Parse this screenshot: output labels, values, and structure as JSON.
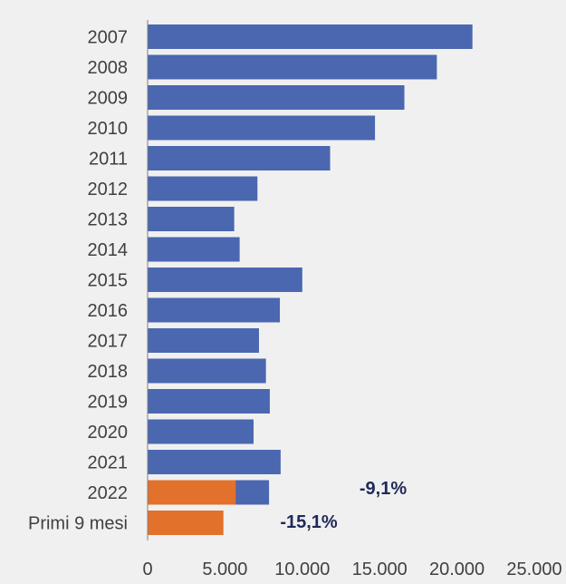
{
  "chart_data": {
    "type": "bar",
    "orientation": "horizontal",
    "categories": [
      "2007",
      "2008",
      "2009",
      "2010",
      "2011",
      "2012",
      "2013",
      "2014",
      "2015",
      "2016",
      "2017",
      "2018",
      "2019",
      "2020",
      "2021",
      "2022",
      "Primi 9 mesi"
    ],
    "series": [
      {
        "color": "#4a67b0",
        "values": [
          21000,
          18700,
          16600,
          14700,
          11800,
          7100,
          5600,
          5950,
          10000,
          8550,
          7200,
          7650,
          7900,
          6850,
          8600,
          7850,
          null
        ]
      },
      {
        "color": "#e2712b",
        "values": [
          null,
          null,
          null,
          null,
          null,
          null,
          null,
          null,
          null,
          null,
          null,
          null,
          null,
          null,
          null,
          5700,
          4900
        ]
      }
    ],
    "xlim": [
      0,
      25000
    ],
    "x_ticks": [
      "0",
      "5.000",
      "10.000",
      "15.000",
      "20.000",
      "25.000"
    ],
    "annotations": [
      {
        "text": "-9,1%",
        "category": "2022"
      },
      {
        "text": "-15,1%",
        "category": "Primi 9 mesi"
      }
    ],
    "grid": false,
    "legend": "none"
  }
}
